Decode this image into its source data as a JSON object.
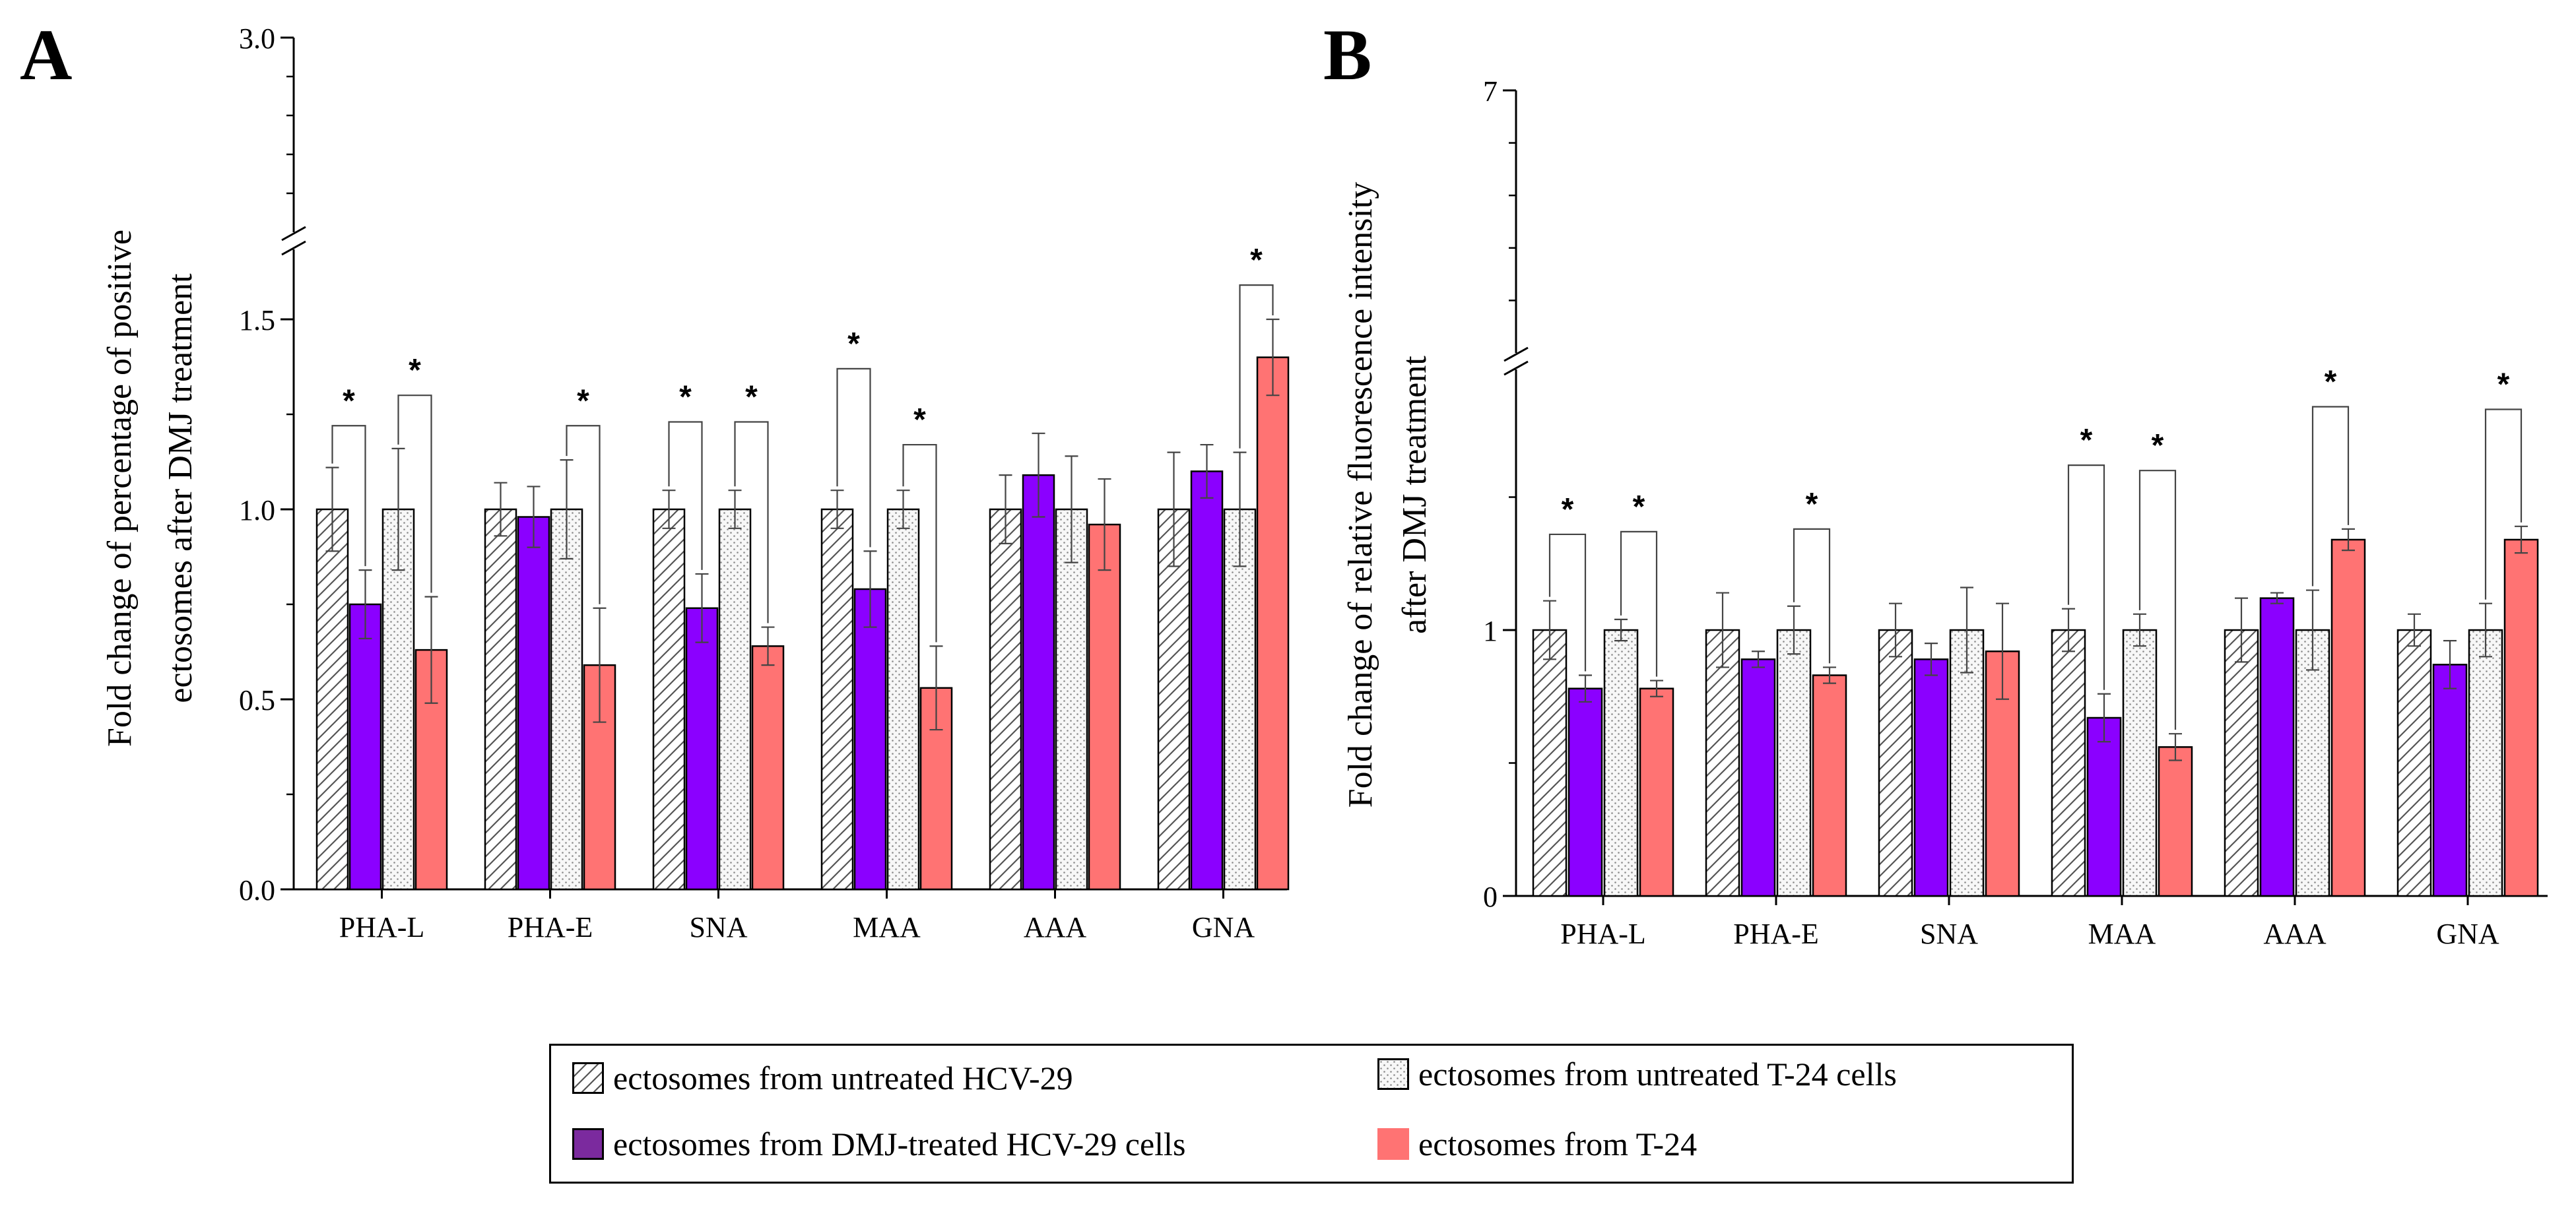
{
  "panels": [
    {
      "letter": "A",
      "ylabel_line1": "Fold change of percentage of positive",
      "ylabel_line2": "ectosomes after DMJ treatment"
    },
    {
      "letter": "B",
      "ylabel_line1": "Fold change of relative fluorescence intensity",
      "ylabel_line2": "after DMJ treatment"
    }
  ],
  "legend": {
    "items": [
      {
        "label": "ectosomes from untreated HCV-29",
        "pattern": "hatch"
      },
      {
        "label": "ectosomes from untreated T-24 cells",
        "pattern": "dots"
      },
      {
        "label": "ectosomes from DMJ-treated HCV-29 cells",
        "pattern": "solid-purple"
      },
      {
        "label": "ectosomes from T-24",
        "pattern": "solid-red"
      }
    ]
  },
  "colors": {
    "purple": "#8B00FF",
    "red": "#FF7373",
    "legend_purple": "#7B2A9E"
  },
  "chart_data": [
    {
      "type": "bar",
      "panel": "A",
      "categories": [
        "PHA-L",
        "PHA-E",
        "SNA",
        "MAA",
        "AAA",
        "GNA"
      ],
      "yticks": [
        "0.0",
        "0.5",
        "1.0",
        "1.5",
        "3.0"
      ],
      "ylim": [
        0,
        3.0
      ],
      "axis_break": [
        1.6,
        2.9
      ],
      "series": [
        {
          "values": [
            1.0,
            1.0,
            1.0,
            1.0,
            1.0,
            1.0
          ],
          "errors": [
            0.11,
            0.07,
            0.05,
            0.05,
            0.09,
            0.15
          ]
        },
        {
          "values": [
            0.75,
            0.98,
            0.74,
            0.79,
            1.09,
            1.1
          ],
          "errors": [
            0.09,
            0.08,
            0.09,
            0.1,
            0.11,
            0.07
          ]
        },
        {
          "values": [
            1.0,
            1.0,
            1.0,
            1.0,
            1.0,
            1.0
          ],
          "errors": [
            0.16,
            0.13,
            0.05,
            0.05,
            0.14,
            0.15
          ]
        },
        {
          "values": [
            0.63,
            0.59,
            0.64,
            0.53,
            0.96,
            1.4
          ],
          "errors": [
            0.14,
            0.15,
            0.05,
            0.11,
            0.12,
            0.1
          ]
        }
      ],
      "significance": [
        {
          "category": "PHA-L",
          "pair": [
            0,
            1
          ],
          "label": "*",
          "level": 1.22
        },
        {
          "category": "PHA-L",
          "pair": [
            2,
            3
          ],
          "label": "*",
          "level": 1.3
        },
        {
          "category": "PHA-E",
          "pair": [
            2,
            3
          ],
          "label": "*",
          "level": 1.22
        },
        {
          "category": "SNA",
          "pair": [
            0,
            1
          ],
          "label": "*",
          "level": 1.23
        },
        {
          "category": "SNA",
          "pair": [
            2,
            3
          ],
          "label": "*",
          "level": 1.23
        },
        {
          "category": "MAA",
          "pair": [
            0,
            1
          ],
          "label": "*",
          "level": 1.37
        },
        {
          "category": "MAA",
          "pair": [
            2,
            3
          ],
          "label": "*",
          "level": 1.17
        },
        {
          "category": "GNA",
          "pair": [
            2,
            3
          ],
          "label": "*",
          "level": 1.59
        }
      ]
    },
    {
      "type": "bar",
      "panel": "B",
      "categories": [
        "PHA-L",
        "PHA-E",
        "SNA",
        "MAA",
        "AAA",
        "GNA"
      ],
      "yticks": [
        "0",
        "1",
        "7"
      ],
      "ylim": [
        0,
        7
      ],
      "axis_break": [
        2.1,
        6.9
      ],
      "series": [
        {
          "values": [
            1.0,
            1.0,
            1.0,
            1.0,
            1.0,
            1.0
          ],
          "errors": [
            0.11,
            0.14,
            0.1,
            0.08,
            0.12,
            0.06
          ]
        },
        {
          "values": [
            0.78,
            0.89,
            0.89,
            0.67,
            1.12,
            0.87
          ],
          "errors": [
            0.05,
            0.03,
            0.06,
            0.09,
            0.02,
            0.09
          ]
        },
        {
          "values": [
            1.0,
            1.0,
            1.0,
            1.0,
            1.0,
            1.0
          ],
          "errors": [
            0.04,
            0.09,
            0.16,
            0.06,
            0.15,
            0.1
          ]
        },
        {
          "values": [
            0.78,
            0.83,
            0.92,
            0.56,
            1.34,
            1.34
          ],
          "errors": [
            0.03,
            0.03,
            0.18,
            0.05,
            0.04,
            0.05
          ]
        }
      ],
      "significance": [
        {
          "category": "PHA-L",
          "pair": [
            0,
            1
          ],
          "label": "*",
          "level": 1.36
        },
        {
          "category": "PHA-L",
          "pair": [
            2,
            3
          ],
          "label": "*",
          "level": 1.37
        },
        {
          "category": "PHA-E",
          "pair": [
            2,
            3
          ],
          "label": "*",
          "level": 1.38
        },
        {
          "category": "MAA",
          "pair": [
            0,
            1
          ],
          "label": "*",
          "level": 1.62
        },
        {
          "category": "MAA",
          "pair": [
            2,
            3
          ],
          "label": "*",
          "level": 1.6
        },
        {
          "category": "AAA",
          "pair": [
            2,
            3
          ],
          "label": "*",
          "level": 1.84
        },
        {
          "category": "GNA",
          "pair": [
            2,
            3
          ],
          "label": "*",
          "level": 1.83
        }
      ]
    }
  ]
}
